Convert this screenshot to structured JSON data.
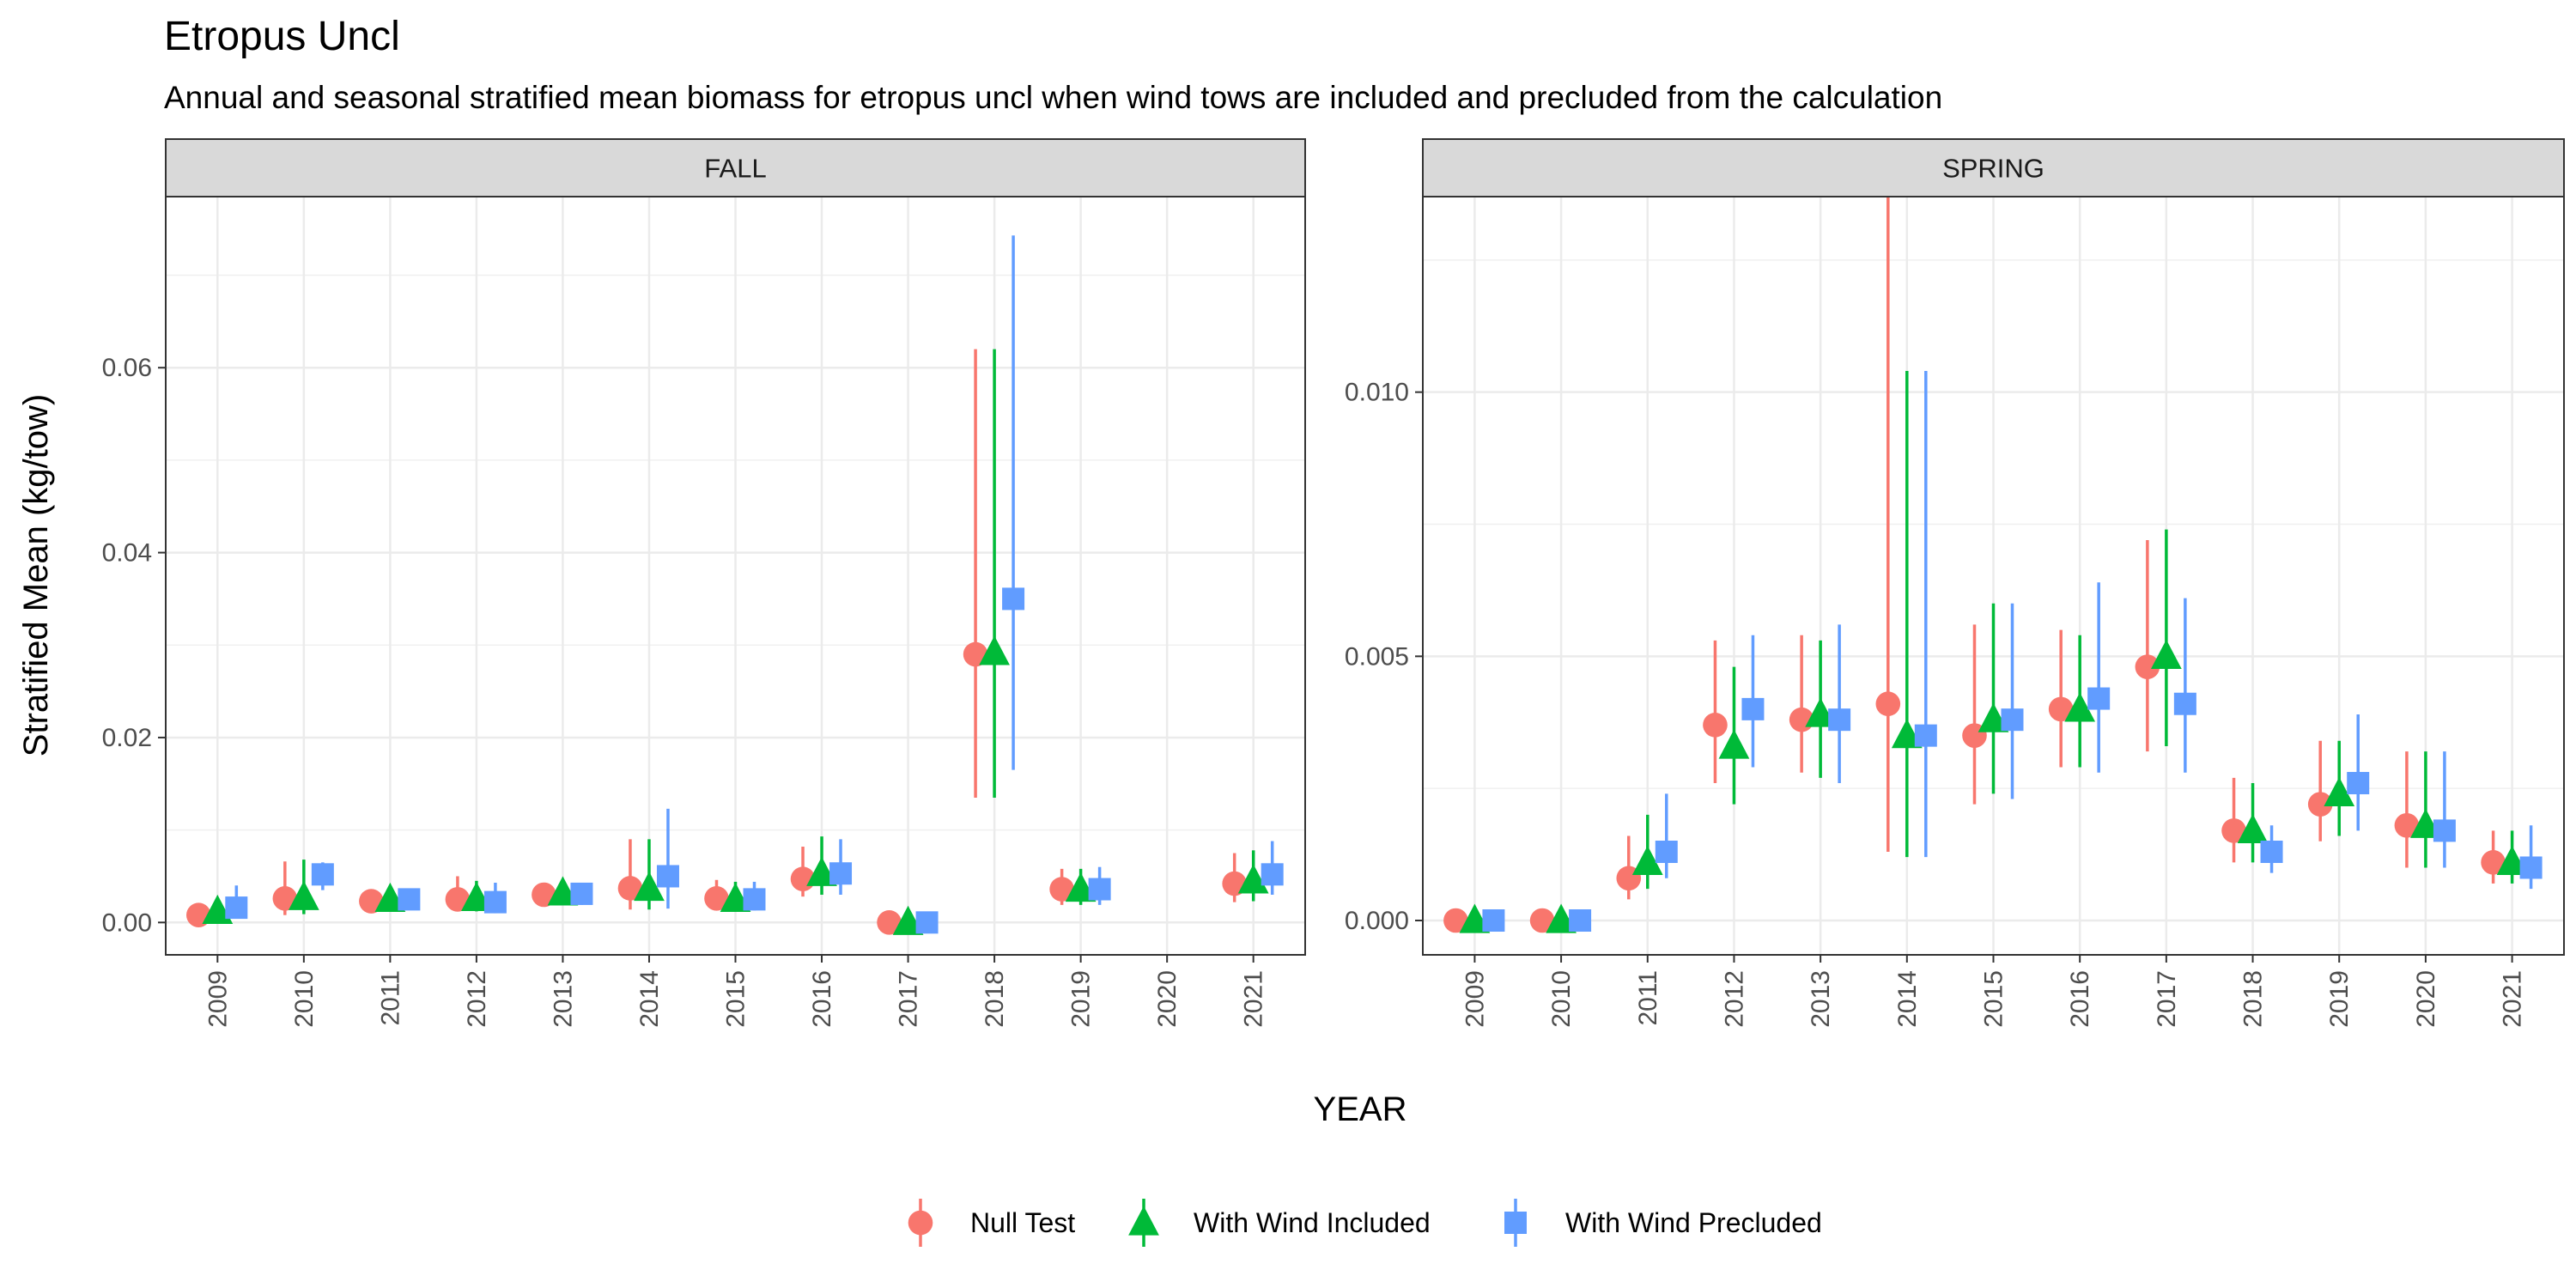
{
  "chart_data": {
    "type": "scatter",
    "title": "Etropus Uncl",
    "subtitle": "Annual and seasonal stratified mean biomass for etropus uncl when wind tows are included and precluded from the calculation",
    "xlabel": "YEAR",
    "ylabel": "Stratified Mean (kg/tow)",
    "grid": true,
    "legend_position": "bottom",
    "legend": [
      {
        "name": "Null Test",
        "color": "#F8766D",
        "shape": "circle"
      },
      {
        "name": "With Wind Included",
        "color": "#00BA38",
        "shape": "triangle"
      },
      {
        "name": "With Wind Precluded",
        "color": "#619CFF",
        "shape": "square"
      }
    ],
    "categories": [
      "2009",
      "2010",
      "2011",
      "2012",
      "2013",
      "2014",
      "2015",
      "2016",
      "2017",
      "2018",
      "2019",
      "2020",
      "2021"
    ],
    "panels": [
      {
        "strip": "FALL",
        "ylim": [
          -0.0035,
          0.0785
        ],
        "yticks": [
          0,
          0.02,
          0.04,
          0.06
        ],
        "ytick_labels": [
          "0.00",
          "0.02",
          "0.04",
          "0.06"
        ],
        "series": [
          {
            "name": "Null Test",
            "values": [
              {
                "x": "2009",
                "y": 0.0008,
                "lo": 0.0004,
                "hi": 0.0013
              },
              {
                "x": "2010",
                "y": 0.0026,
                "lo": 0.0008,
                "hi": 0.0066
              },
              {
                "x": "2011",
                "y": 0.0023,
                "lo": 0.0016,
                "hi": 0.0033
              },
              {
                "x": "2012",
                "y": 0.0025,
                "lo": 0.0012,
                "hi": 0.005
              },
              {
                "x": "2013",
                "y": 0.003,
                "lo": 0.0018,
                "hi": 0.0042
              },
              {
                "x": "2014",
                "y": 0.0037,
                "lo": 0.0014,
                "hi": 0.009
              },
              {
                "x": "2015",
                "y": 0.0026,
                "lo": 0.0014,
                "hi": 0.0046
              },
              {
                "x": "2016",
                "y": 0.0047,
                "lo": 0.0028,
                "hi": 0.0082
              },
              {
                "x": "2017",
                "y": 0.0,
                "lo": 0.0,
                "hi": 0.0002
              },
              {
                "x": "2018",
                "y": 0.029,
                "lo": 0.0135,
                "hi": 0.062
              },
              {
                "x": "2019",
                "y": 0.0036,
                "lo": 0.0019,
                "hi": 0.0058
              },
              {
                "x": "2021",
                "y": 0.0042,
                "lo": 0.0022,
                "hi": 0.0075
              }
            ]
          },
          {
            "name": "With Wind Included",
            "values": [
              {
                "x": "2009",
                "y": 0.0012,
                "lo": 0.0005,
                "hi": 0.002
              },
              {
                "x": "2010",
                "y": 0.0027,
                "lo": 0.0009,
                "hi": 0.0068
              },
              {
                "x": "2011",
                "y": 0.0025,
                "lo": 0.0016,
                "hi": 0.0034
              },
              {
                "x": "2012",
                "y": 0.0026,
                "lo": 0.0012,
                "hi": 0.0045
              },
              {
                "x": "2013",
                "y": 0.0032,
                "lo": 0.002,
                "hi": 0.0043
              },
              {
                "x": "2014",
                "y": 0.0037,
                "lo": 0.0014,
                "hi": 0.009
              },
              {
                "x": "2015",
                "y": 0.0025,
                "lo": 0.0013,
                "hi": 0.0044
              },
              {
                "x": "2016",
                "y": 0.0053,
                "lo": 0.003,
                "hi": 0.0093
              },
              {
                "x": "2017",
                "y": 0.0,
                "lo": 0.0,
                "hi": 0.0002
              },
              {
                "x": "2018",
                "y": 0.0292,
                "lo": 0.0135,
                "hi": 0.062
              },
              {
                "x": "2019",
                "y": 0.0036,
                "lo": 0.0019,
                "hi": 0.0058
              },
              {
                "x": "2021",
                "y": 0.0045,
                "lo": 0.0023,
                "hi": 0.0078
              }
            ]
          },
          {
            "name": "With Wind Precluded",
            "values": [
              {
                "x": "2009",
                "y": 0.0016,
                "lo": 0.0005,
                "hi": 0.004
              },
              {
                "x": "2010",
                "y": 0.0052,
                "lo": 0.0035,
                "hi": 0.0065
              },
              {
                "x": "2011",
                "y": 0.0025,
                "lo": 0.0016,
                "hi": 0.0034
              },
              {
                "x": "2012",
                "y": 0.0022,
                "lo": 0.001,
                "hi": 0.0043
              },
              {
                "x": "2013",
                "y": 0.0031,
                "lo": 0.0019,
                "hi": 0.0042
              },
              {
                "x": "2014",
                "y": 0.005,
                "lo": 0.0015,
                "hi": 0.0123
              },
              {
                "x": "2015",
                "y": 0.0025,
                "lo": 0.0013,
                "hi": 0.0044
              },
              {
                "x": "2016",
                "y": 0.0053,
                "lo": 0.003,
                "hi": 0.009
              },
              {
                "x": "2017",
                "y": 0.0,
                "lo": 0.0,
                "hi": 0.0002
              },
              {
                "x": "2018",
                "y": 0.035,
                "lo": 0.0165,
                "hi": 0.0743
              },
              {
                "x": "2019",
                "y": 0.0036,
                "lo": 0.0019,
                "hi": 0.006
              },
              {
                "x": "2021",
                "y": 0.0052,
                "lo": 0.003,
                "hi": 0.0088
              }
            ]
          }
        ]
      },
      {
        "strip": "SPRING",
        "ylim": [
          -0.00065,
          0.0137
        ],
        "yticks": [
          0,
          0.005,
          0.01
        ],
        "ytick_labels": [
          "0.000",
          "0.005",
          "0.010"
        ],
        "series": [
          {
            "name": "Null Test",
            "values": [
              {
                "x": "2009",
                "y": 0.0,
                "lo": 0.0,
                "hi": 0.0
              },
              {
                "x": "2010",
                "y": 0.0,
                "lo": 0.0,
                "hi": 0.0
              },
              {
                "x": "2011",
                "y": 0.0008,
                "lo": 0.0004,
                "hi": 0.0016
              },
              {
                "x": "2012",
                "y": 0.0037,
                "lo": 0.0026,
                "hi": 0.0053
              },
              {
                "x": "2013",
                "y": 0.0038,
                "lo": 0.0028,
                "hi": 0.0054
              },
              {
                "x": "2014",
                "y": 0.0041,
                "lo": 0.0013,
                "hi": 0.0137
              },
              {
                "x": "2015",
                "y": 0.0035,
                "lo": 0.0022,
                "hi": 0.0056
              },
              {
                "x": "2016",
                "y": 0.004,
                "lo": 0.0029,
                "hi": 0.0055
              },
              {
                "x": "2017",
                "y": 0.0048,
                "lo": 0.0032,
                "hi": 0.0072
              },
              {
                "x": "2018",
                "y": 0.0017,
                "lo": 0.0011,
                "hi": 0.0027
              },
              {
                "x": "2019",
                "y": 0.0022,
                "lo": 0.0015,
                "hi": 0.0034
              },
              {
                "x": "2020",
                "y": 0.0018,
                "lo": 0.001,
                "hi": 0.0032
              },
              {
                "x": "2021",
                "y": 0.0011,
                "lo": 0.0007,
                "hi": 0.0017
              }
            ]
          },
          {
            "name": "With Wind Included",
            "values": [
              {
                "x": "2009",
                "y": 0.0,
                "lo": 0.0,
                "hi": 0.0
              },
              {
                "x": "2010",
                "y": 0.0,
                "lo": 0.0,
                "hi": 0.0
              },
              {
                "x": "2011",
                "y": 0.0011,
                "lo": 0.0006,
                "hi": 0.002
              },
              {
                "x": "2012",
                "y": 0.0033,
                "lo": 0.0022,
                "hi": 0.0048
              },
              {
                "x": "2013",
                "y": 0.0039,
                "lo": 0.0027,
                "hi": 0.0053
              },
              {
                "x": "2014",
                "y": 0.0035,
                "lo": 0.0012,
                "hi": 0.0104
              },
              {
                "x": "2015",
                "y": 0.0038,
                "lo": 0.0024,
                "hi": 0.006
              },
              {
                "x": "2016",
                "y": 0.004,
                "lo": 0.0029,
                "hi": 0.0054
              },
              {
                "x": "2017",
                "y": 0.005,
                "lo": 0.0033,
                "hi": 0.0074
              },
              {
                "x": "2018",
                "y": 0.0017,
                "lo": 0.0011,
                "hi": 0.0026
              },
              {
                "x": "2019",
                "y": 0.0024,
                "lo": 0.0016,
                "hi": 0.0034
              },
              {
                "x": "2020",
                "y": 0.0018,
                "lo": 0.001,
                "hi": 0.0032
              },
              {
                "x": "2021",
                "y": 0.0011,
                "lo": 0.0007,
                "hi": 0.0017
              }
            ]
          },
          {
            "name": "With Wind Precluded",
            "values": [
              {
                "x": "2009",
                "y": 0.0,
                "lo": 0.0,
                "hi": 0.0
              },
              {
                "x": "2010",
                "y": 0.0,
                "lo": 0.0,
                "hi": 0.0
              },
              {
                "x": "2011",
                "y": 0.0013,
                "lo": 0.0008,
                "hi": 0.0024
              },
              {
                "x": "2012",
                "y": 0.004,
                "lo": 0.0029,
                "hi": 0.0054
              },
              {
                "x": "2013",
                "y": 0.0038,
                "lo": 0.0026,
                "hi": 0.0056
              },
              {
                "x": "2014",
                "y": 0.0035,
                "lo": 0.0012,
                "hi": 0.0104
              },
              {
                "x": "2015",
                "y": 0.0038,
                "lo": 0.0023,
                "hi": 0.006
              },
              {
                "x": "2016",
                "y": 0.0042,
                "lo": 0.0028,
                "hi": 0.0064
              },
              {
                "x": "2017",
                "y": 0.0041,
                "lo": 0.0028,
                "hi": 0.0061
              },
              {
                "x": "2018",
                "y": 0.0013,
                "lo": 0.0009,
                "hi": 0.0018
              },
              {
                "x": "2019",
                "y": 0.0026,
                "lo": 0.0017,
                "hi": 0.0039
              },
              {
                "x": "2020",
                "y": 0.0017,
                "lo": 0.001,
                "hi": 0.0032
              },
              {
                "x": "2021",
                "y": 0.001,
                "lo": 0.0006,
                "hi": 0.0018
              }
            ]
          }
        ]
      }
    ]
  }
}
